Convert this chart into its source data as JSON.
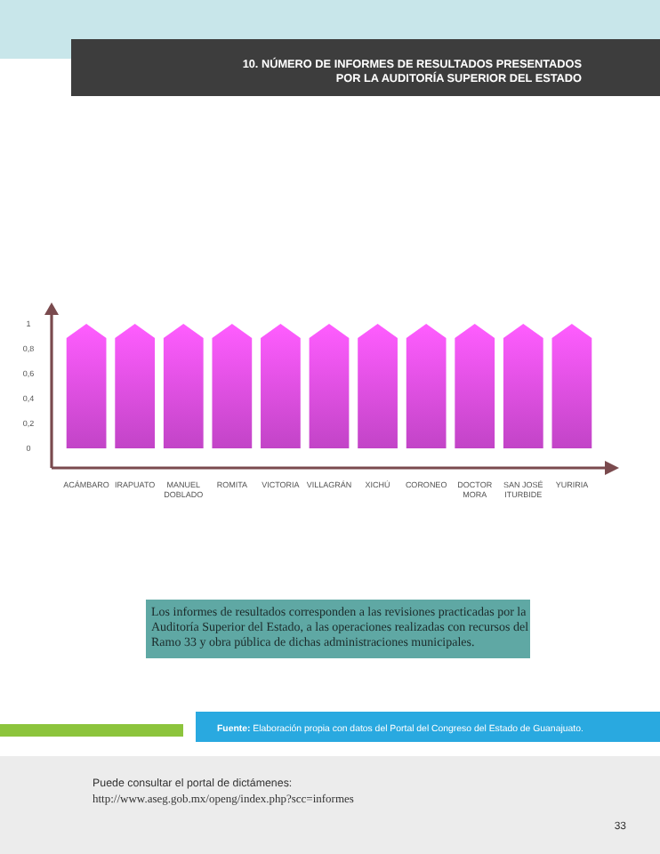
{
  "chart_data": {
    "type": "bar",
    "title": "10. NÚMERO DE INFORMES DE RESULTADOS PRESENTADOS POR LA AUDITORÍA SUPERIOR DEL ESTADO",
    "categories": [
      "ACÁMBARO",
      "IRAPUATO",
      "MANUEL DOBLADO",
      "ROMITA",
      "VICTORIA",
      "VILLAGRÁN",
      "XICHÚ",
      "CORONEO",
      "DOCTOR MORA",
      "SAN JOSÉ ITURBIDE",
      "YURIRIA"
    ],
    "series": [
      {
        "color": "#e04ee6",
        "values": [
          1,
          1,
          1,
          1,
          1,
          1,
          1,
          1,
          1,
          1,
          1
        ]
      }
    ],
    "ylim": [
      0,
      1
    ],
    "yticks": [
      {
        "value": 0,
        "label": "0"
      },
      {
        "value": 0.2,
        "label": "0,2"
      },
      {
        "value": 0.4,
        "label": "0,4"
      },
      {
        "value": 0.6,
        "label": "0,6"
      },
      {
        "value": 0.8,
        "label": "0,8"
      },
      {
        "value": 1,
        "label": "1"
      }
    ],
    "annotations": [
      "Los informes de resultados corresponden a las revisiones practicadas por la Auditoría Superior del Estado, a las operaciones realizadas con recursos del Ramo 33 y obra pública de dichas administraciones municipales.",
      "Fuente: Elaboración propia con datos del Portal del Congreso del Estado de Guanajuato.",
      "Puede consultar el portal de dictámenes:",
      "http://www.aseg.gob.mx/openg/index.php?scc=informes",
      "33"
    ]
  }
}
